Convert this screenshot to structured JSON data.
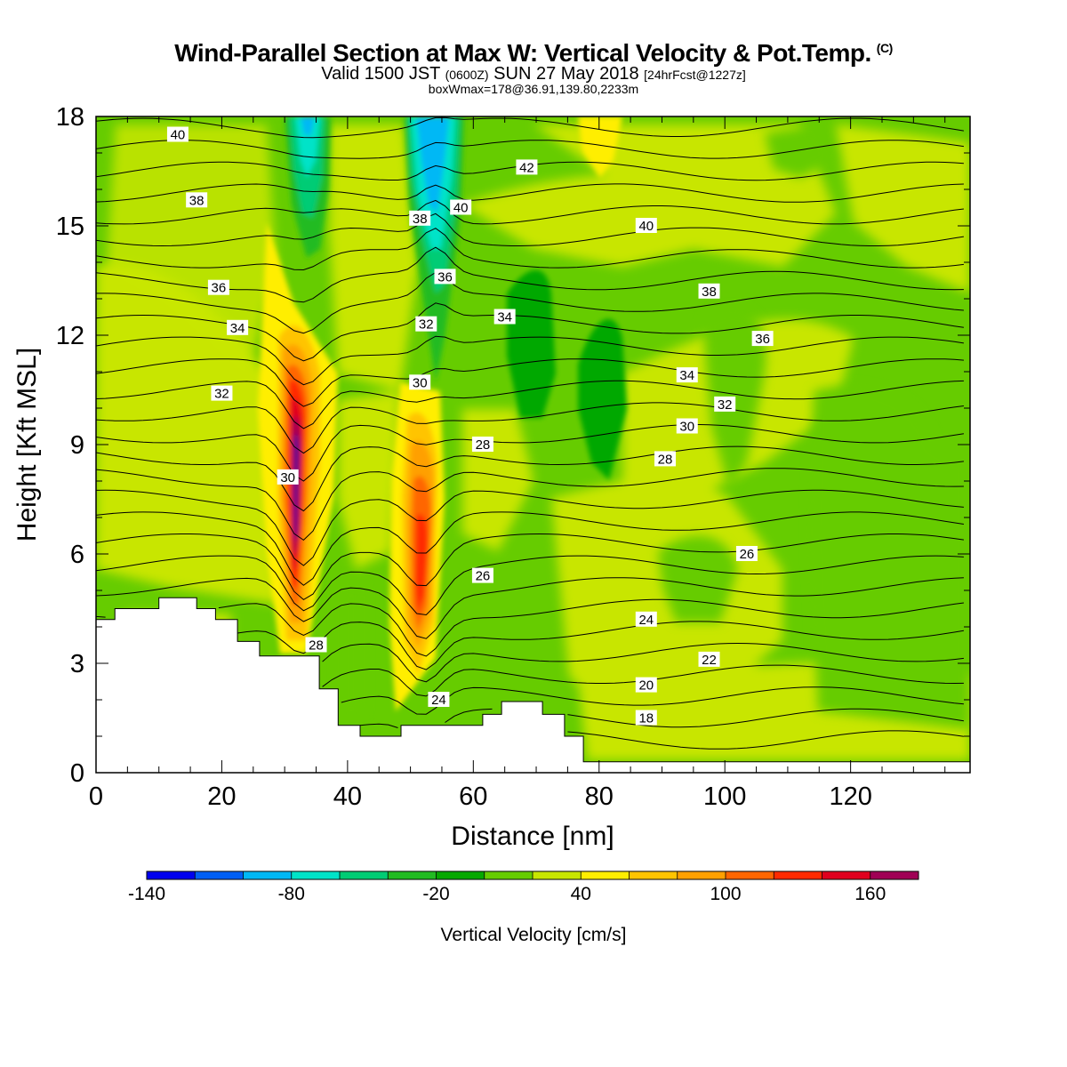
{
  "header": {
    "title": "Wind-Parallel Section at Max W: Vertical Velocity & Pot.Temp.",
    "copyright": "(C)",
    "valid_prefix": "Valid 1500 JST",
    "valid_z": "(0600Z)",
    "valid_date": "SUN 27 May 2018",
    "forecast": "[24hrFcst@1227z]",
    "boxinfo": "boxWmax=178@36.91,139.80,2233m"
  },
  "chart_data": {
    "type": "heatmap",
    "xlabel": "Distance [nm]",
    "ylabel": "Height [Kft MSL]",
    "xlim": [
      0,
      139
    ],
    "ylim": [
      0,
      18
    ],
    "x_ticks": [
      0,
      20,
      40,
      60,
      80,
      100,
      120
    ],
    "y_ticks": [
      0,
      3,
      6,
      9,
      12,
      15,
      18
    ],
    "colorbar": {
      "label": "Vertical Velocity [cm/s]",
      "levels": [
        -140,
        -120,
        -100,
        -80,
        -60,
        -40,
        -20,
        0,
        20,
        40,
        60,
        80,
        100,
        120,
        140,
        160,
        180
      ],
      "tick_labels": [
        -140,
        -80,
        -20,
        40,
        100,
        160
      ],
      "colors": [
        "#0000ee",
        "#005ff5",
        "#00b8f5",
        "#00e3c8",
        "#00cc74",
        "#22bb22",
        "#06a800",
        "#66cc00",
        "#c8e600",
        "#ffee00",
        "#ffc400",
        "#ffa000",
        "#ff6600",
        "#ff2a00",
        "#e0001e",
        "#a00055",
        "#5a1090"
      ]
    },
    "terrain_kft": [
      [
        0,
        4.2
      ],
      [
        3,
        4.2
      ],
      [
        3,
        4.5
      ],
      [
        10,
        4.5
      ],
      [
        10,
        4.8
      ],
      [
        16,
        4.8
      ],
      [
        16,
        4.5
      ],
      [
        19,
        4.5
      ],
      [
        19,
        4.2
      ],
      [
        22.5,
        4.2
      ],
      [
        22.5,
        3.6
      ],
      [
        26,
        3.6
      ],
      [
        26,
        3.2
      ],
      [
        35.5,
        3.2
      ],
      [
        35.5,
        2.3
      ],
      [
        38.5,
        2.3
      ],
      [
        38.5,
        1.3
      ],
      [
        42,
        1.3
      ],
      [
        42,
        1.0
      ],
      [
        48.5,
        1.0
      ],
      [
        48.5,
        1.3
      ],
      [
        61.5,
        1.3
      ],
      [
        61.5,
        1.6
      ],
      [
        64.5,
        1.6
      ],
      [
        64.5,
        1.95
      ],
      [
        71,
        1.95
      ],
      [
        71,
        1.6
      ],
      [
        74.5,
        1.6
      ],
      [
        74.5,
        1.0
      ],
      [
        77.5,
        1.0
      ],
      [
        77.5,
        0.3
      ],
      [
        139,
        0.3
      ]
    ],
    "updraft_cores": [
      {
        "x": 32.5,
        "y": 8.0,
        "w_max": 178
      },
      {
        "x": 51.5,
        "y": 5.5,
        "w_max": 110
      }
    ],
    "downdraft_cores": [
      {
        "x": 53.5,
        "y": 16.3,
        "w_min": -95
      },
      {
        "x": 34.0,
        "y": 17.3,
        "w_min": -90
      }
    ],
    "theta_contour_labels": [
      {
        "text": "40",
        "x": 13,
        "y": 17.5
      },
      {
        "text": "42",
        "x": 68.5,
        "y": 16.6
      },
      {
        "text": "40",
        "x": 58,
        "y": 15.5
      },
      {
        "text": "38",
        "x": 16,
        "y": 15.7
      },
      {
        "text": "38",
        "x": 51.5,
        "y": 15.2
      },
      {
        "text": "40",
        "x": 87.5,
        "y": 15.0
      },
      {
        "text": "36",
        "x": 19.5,
        "y": 13.3
      },
      {
        "text": "36",
        "x": 55.5,
        "y": 13.6
      },
      {
        "text": "38",
        "x": 97.5,
        "y": 13.2
      },
      {
        "text": "34",
        "x": 22.5,
        "y": 12.2
      },
      {
        "text": "32",
        "x": 52.5,
        "y": 12.3
      },
      {
        "text": "34",
        "x": 65,
        "y": 12.5
      },
      {
        "text": "36",
        "x": 106,
        "y": 11.9
      },
      {
        "text": "32",
        "x": 20,
        "y": 10.4
      },
      {
        "text": "30",
        "x": 51.5,
        "y": 10.7
      },
      {
        "text": "34",
        "x": 94,
        "y": 10.9
      },
      {
        "text": "32",
        "x": 100,
        "y": 10.1
      },
      {
        "text": "30",
        "x": 30.5,
        "y": 8.1
      },
      {
        "text": "28",
        "x": 61.5,
        "y": 9.0
      },
      {
        "text": "30",
        "x": 94,
        "y": 9.5
      },
      {
        "text": "28",
        "x": 90.5,
        "y": 8.6
      },
      {
        "text": "26",
        "x": 103.5,
        "y": 6.0
      },
      {
        "text": "26",
        "x": 61.5,
        "y": 5.4
      },
      {
        "text": "24",
        "x": 87.5,
        "y": 4.2
      },
      {
        "text": "28",
        "x": 35,
        "y": 3.5
      },
      {
        "text": "22",
        "x": 97.5,
        "y": 3.1
      },
      {
        "text": "20",
        "x": 87.5,
        "y": 2.4
      },
      {
        "text": "24",
        "x": 54.5,
        "y": 2.0
      },
      {
        "text": "18",
        "x": 87.5,
        "y": 1.5
      }
    ]
  }
}
